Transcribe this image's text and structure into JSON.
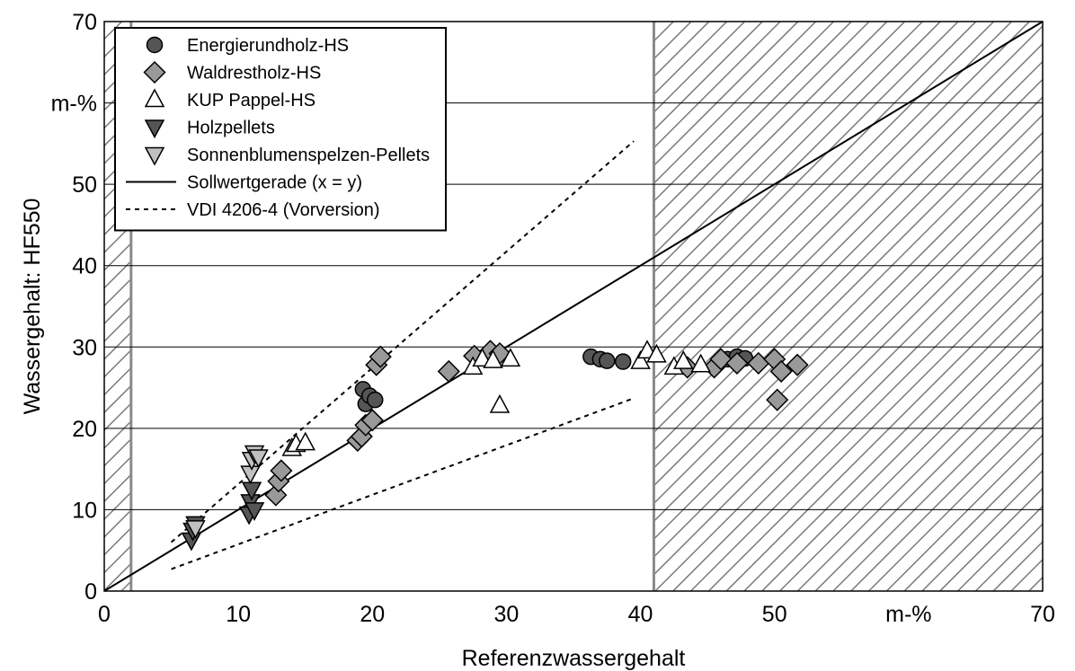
{
  "chart_data": {
    "type": "scatter",
    "xlabel": "Referenzwassergehalt",
    "ylabel": "Wassergehalt: HF550",
    "xunit": "m-%",
    "yunit": "m-%",
    "xlim": [
      0,
      70
    ],
    "ylim": [
      0,
      70
    ],
    "xticks": [
      "0",
      "10",
      "20",
      "30",
      "40",
      "50",
      "m-%",
      "70"
    ],
    "yticks": [
      "0",
      "10",
      "20",
      "30",
      "40",
      "50",
      "m-%",
      "70"
    ],
    "grid": "horizontal",
    "legend_position": "top-left",
    "hatched_regions": [
      {
        "x": [
          0,
          2
        ]
      },
      {
        "x": [
          41,
          70
        ]
      }
    ],
    "series": [
      {
        "name": "Energierundholz-HS",
        "marker": "circle",
        "color": "#555555",
        "points": [
          [
            19.3,
            24.8
          ],
          [
            19.5,
            23.0
          ],
          [
            19.8,
            24.0
          ],
          [
            20.2,
            23.5
          ],
          [
            36.3,
            28.8
          ],
          [
            37.0,
            28.5
          ],
          [
            37.5,
            28.3
          ],
          [
            38.7,
            28.2
          ],
          [
            46.5,
            28.5
          ],
          [
            47.2,
            28.8
          ],
          [
            47.8,
            28.6
          ]
        ]
      },
      {
        "name": "Waldrestholz-HS",
        "marker": "diamond",
        "color": "#999999",
        "points": [
          [
            12.8,
            11.8
          ],
          [
            13.0,
            13.5
          ],
          [
            13.2,
            14.8
          ],
          [
            18.9,
            18.5
          ],
          [
            19.2,
            19.0
          ],
          [
            19.5,
            20.4
          ],
          [
            20.0,
            21.0
          ],
          [
            20.3,
            27.8
          ],
          [
            20.6,
            28.8
          ],
          [
            25.7,
            27.0
          ],
          [
            27.6,
            28.9
          ],
          [
            28.8,
            29.5
          ],
          [
            29.5,
            29.2
          ],
          [
            43.5,
            27.5
          ],
          [
            45.5,
            27.5
          ],
          [
            46.0,
            28.5
          ],
          [
            47.2,
            28.0
          ],
          [
            48.8,
            28.0
          ],
          [
            50.0,
            28.5
          ],
          [
            50.5,
            27.0
          ],
          [
            51.7,
            27.8
          ],
          [
            50.2,
            23.5
          ]
        ]
      },
      {
        "name": "KUP Pappel-HS",
        "marker": "triangle-up",
        "color": "#ffffff",
        "points": [
          [
            14.0,
            17.5
          ],
          [
            14.3,
            18.0
          ],
          [
            15.0,
            18.2
          ],
          [
            27.5,
            27.5
          ],
          [
            28.2,
            28.5
          ],
          [
            29.0,
            28.3
          ],
          [
            29.5,
            22.8
          ],
          [
            30.3,
            28.5
          ],
          [
            40.0,
            28.2
          ],
          [
            40.5,
            29.5
          ],
          [
            41.2,
            29.0
          ],
          [
            42.5,
            27.5
          ],
          [
            43.2,
            28.2
          ],
          [
            44.5,
            27.8
          ]
        ]
      },
      {
        "name": "Holzpellets",
        "marker": "triangle-down",
        "color": "#555555",
        "points": [
          [
            6.5,
            6.3
          ],
          [
            6.6,
            7.5
          ],
          [
            6.8,
            8.3
          ],
          [
            10.8,
            9.5
          ],
          [
            10.9,
            11.0
          ],
          [
            11.0,
            12.5
          ],
          [
            11.2,
            10.0
          ]
        ]
      },
      {
        "name": "Sonnenblumenspelzen-Pellets",
        "marker": "triangle-down",
        "color": "#c0c0c0",
        "points": [
          [
            6.8,
            7.8
          ],
          [
            10.9,
            14.5
          ],
          [
            11.0,
            16.2
          ],
          [
            11.2,
            17.0
          ],
          [
            11.5,
            16.5
          ]
        ]
      }
    ],
    "lines": [
      {
        "name": "Sollwertgerade (x = y)",
        "style": "solid",
        "points": [
          [
            0,
            0
          ],
          [
            70,
            70
          ]
        ]
      },
      {
        "name": "VDI 4206-4 (Vorversion)",
        "style": "dotted",
        "points": [
          [
            5,
            6
          ],
          [
            39.5,
            55.3
          ]
        ]
      },
      {
        "name": "",
        "style": "dotted",
        "points": [
          [
            5,
            2.7
          ],
          [
            39.5,
            23.7
          ]
        ]
      }
    ]
  }
}
